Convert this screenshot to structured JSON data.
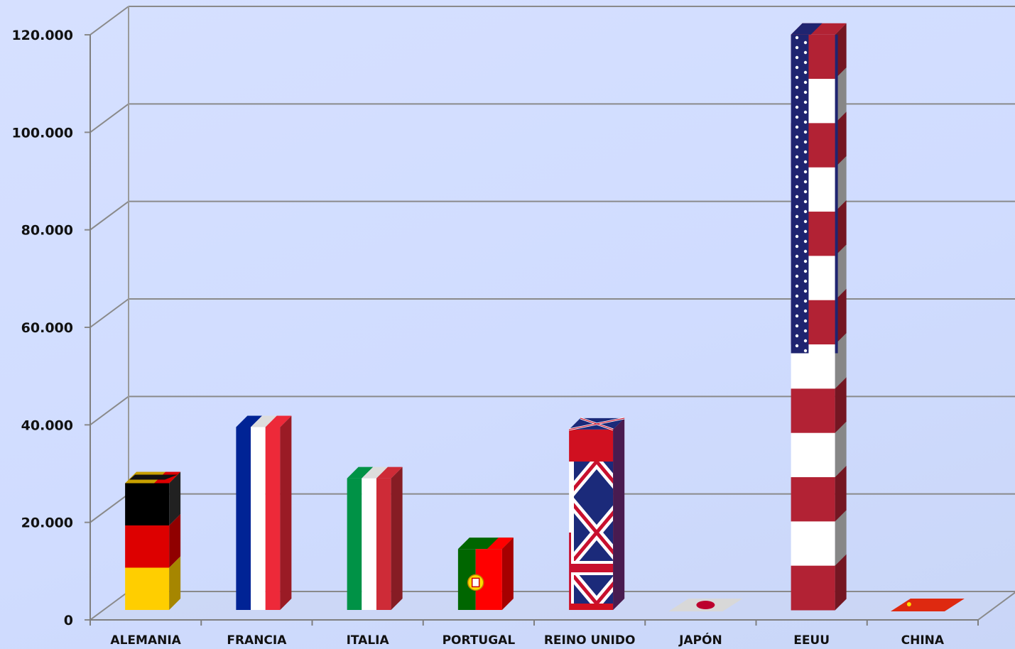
{
  "chart_data": {
    "type": "bar",
    "categories": [
      "ALEMANIA",
      "FRANCIA",
      "ITALIA",
      "PORTUGAL",
      "REINO UNIDO",
      "JAPÓN",
      "EEUU",
      "CHINA"
    ],
    "values": [
      26000,
      37500,
      27000,
      12500,
      37000,
      0,
      118000,
      0
    ],
    "ylim": [
      0,
      120000
    ],
    "yticks": [
      0,
      20000,
      40000,
      60000,
      80000,
      100000,
      120000
    ],
    "ytick_labels": [
      "0",
      "20.000",
      "40.000",
      "60.000",
      "80.000",
      "100.000",
      "120.000"
    ],
    "grid": true,
    "bar_style": "3d-flags",
    "flags": [
      "germany",
      "france",
      "italy",
      "portugal",
      "united-kingdom",
      "japan",
      "usa",
      "china"
    ],
    "colors": {
      "gridline": "#8a8a8a",
      "germany": [
        "#000000",
        "#dd0000",
        "#ffce00"
      ],
      "france": [
        "#002395",
        "#ffffff",
        "#ed2939"
      ],
      "italy": [
        "#009246",
        "#ffffff",
        "#ce2b37"
      ],
      "portugal": [
        "#006600",
        "#ff0000"
      ],
      "united-kingdom": [
        "#012169",
        "#ffffff",
        "#c8102e"
      ],
      "japan": [
        "#ffffff",
        "#bc002d"
      ],
      "usa": [
        "#3c3b6e",
        "#ffffff",
        "#b22234"
      ],
      "china": [
        "#de2910",
        "#ffde00"
      ]
    }
  }
}
